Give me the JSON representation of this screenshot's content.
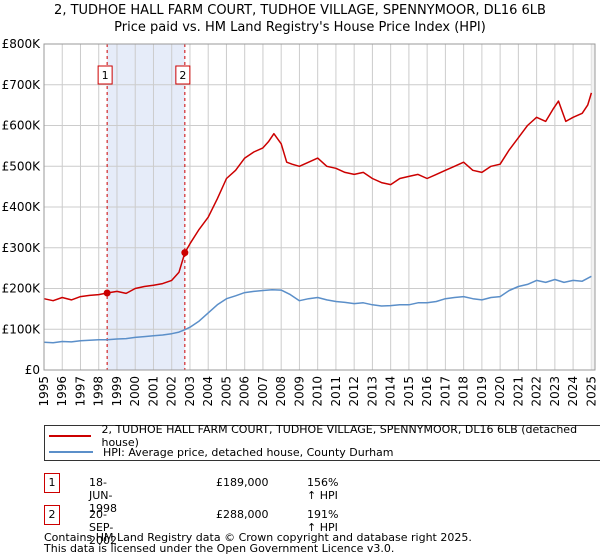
{
  "chart_data": {
    "type": "line",
    "title": "2, TUDHOE HALL FARM COURT, TUDHOE VILLAGE, SPENNYMOOR, DL16 6LB",
    "subtitle": "Price paid vs. HM Land Registry's House Price Index (HPI)",
    "xlabel": "",
    "ylabel": "",
    "xlim": [
      1995,
      2025.2
    ],
    "ylim": [
      0,
      800000
    ],
    "y_ticks": [
      {
        "value": 0,
        "label": "£0"
      },
      {
        "value": 100000,
        "label": "£100K"
      },
      {
        "value": 200000,
        "label": "£200K"
      },
      {
        "value": 300000,
        "label": "£300K"
      },
      {
        "value": 400000,
        "label": "£400K"
      },
      {
        "value": 500000,
        "label": "£500K"
      },
      {
        "value": 600000,
        "label": "£600K"
      },
      {
        "value": 700000,
        "label": "£700K"
      },
      {
        "value": 800000,
        "label": "£800K"
      }
    ],
    "x_ticks": [
      "1995",
      "1996",
      "1997",
      "1998",
      "1999",
      "2000",
      "2001",
      "2002",
      "2003",
      "2004",
      "2005",
      "2006",
      "2007",
      "2008",
      "2009",
      "2010",
      "2011",
      "2012",
      "2013",
      "2014",
      "2015",
      "2016",
      "2017",
      "2018",
      "2019",
      "2020",
      "2021",
      "2022",
      "2023",
      "2024",
      "2025"
    ],
    "grid": true,
    "shaded_region": {
      "from": 1998.46,
      "to": 2002.72
    },
    "series": [
      {
        "name": "2, TUDHOE HALL FARM COURT, TUDHOE VILLAGE, SPENNYMOOR, DL16 6LB (detached house)",
        "color": "#cc0000",
        "x": [
          1995.0,
          1995.5,
          1996.0,
          1996.5,
          1997.0,
          1997.5,
          1998.0,
          1998.46,
          1999.0,
          1999.5,
          2000.0,
          2000.5,
          2001.0,
          2001.5,
          2002.0,
          2002.4,
          2002.72,
          2003.0,
          2003.5,
          2004.0,
          2004.5,
          2005.0,
          2005.5,
          2006.0,
          2006.5,
          2007.0,
          2007.3,
          2007.6,
          2008.0,
          2008.3,
          2008.6,
          2009.0,
          2009.5,
          2010.0,
          2010.5,
          2011.0,
          2011.5,
          2012.0,
          2012.5,
          2013.0,
          2013.5,
          2014.0,
          2014.5,
          2015.0,
          2015.5,
          2016.0,
          2016.5,
          2017.0,
          2017.5,
          2018.0,
          2018.5,
          2019.0,
          2019.5,
          2020.0,
          2020.5,
          2021.0,
          2021.5,
          2022.0,
          2022.5,
          2022.9,
          2023.2,
          2023.6,
          2024.0,
          2024.5,
          2024.8,
          2025.0
        ],
        "y": [
          175000,
          170000,
          178000,
          172000,
          180000,
          183000,
          185000,
          189000,
          193000,
          188000,
          200000,
          205000,
          208000,
          212000,
          220000,
          240000,
          288000,
          310000,
          345000,
          375000,
          420000,
          470000,
          490000,
          520000,
          535000,
          545000,
          560000,
          580000,
          555000,
          510000,
          505000,
          500000,
          510000,
          520000,
          500000,
          495000,
          485000,
          480000,
          485000,
          470000,
          460000,
          455000,
          470000,
          475000,
          480000,
          470000,
          480000,
          490000,
          500000,
          510000,
          490000,
          485000,
          500000,
          505000,
          540000,
          570000,
          600000,
          620000,
          610000,
          640000,
          660000,
          610000,
          620000,
          630000,
          650000,
          680000
        ]
      },
      {
        "name": "HPI: Average price, detached house, County Durham",
        "color": "#5b8fc9",
        "x": [
          1995.0,
          1995.5,
          1996.0,
          1996.5,
          1997.0,
          1997.5,
          1998.0,
          1998.46,
          1999.0,
          1999.5,
          2000.0,
          2000.5,
          2001.0,
          2001.5,
          2002.0,
          2002.4,
          2002.72,
          2003.0,
          2003.5,
          2004.0,
          2004.5,
          2005.0,
          2005.5,
          2006.0,
          2006.5,
          2007.0,
          2007.5,
          2008.0,
          2008.5,
          2009.0,
          2009.5,
          2010.0,
          2010.5,
          2011.0,
          2011.5,
          2012.0,
          2012.5,
          2013.0,
          2013.5,
          2014.0,
          2014.5,
          2015.0,
          2015.5,
          2016.0,
          2016.5,
          2017.0,
          2017.5,
          2018.0,
          2018.5,
          2019.0,
          2019.5,
          2020.0,
          2020.5,
          2021.0,
          2021.5,
          2022.0,
          2022.5,
          2023.0,
          2023.5,
          2024.0,
          2024.5,
          2025.0
        ],
        "y": [
          68000,
          67000,
          70000,
          69000,
          72000,
          73000,
          74000,
          74000,
          76000,
          77000,
          80000,
          82000,
          84000,
          86000,
          89000,
          93000,
          99000,
          105000,
          120000,
          140000,
          160000,
          175000,
          182000,
          190000,
          193000,
          195000,
          197000,
          196000,
          185000,
          170000,
          175000,
          178000,
          172000,
          168000,
          166000,
          163000,
          165000,
          160000,
          157000,
          158000,
          160000,
          160000,
          165000,
          165000,
          168000,
          175000,
          178000,
          180000,
          175000,
          172000,
          178000,
          180000,
          195000,
          205000,
          210000,
          220000,
          215000,
          222000,
          215000,
          220000,
          218000,
          230000
        ]
      }
    ],
    "sales": [
      {
        "number": "1",
        "x": 1998.46,
        "y": 189000
      },
      {
        "number": "2",
        "x": 2002.72,
        "y": 288000
      }
    ]
  },
  "legend": {
    "property_label": "2, TUDHOE HALL FARM COURT, TUDHOE VILLAGE, SPENNYMOOR, DL16 6LB (detached house)",
    "hpi_label": "HPI: Average price, detached house, County Durham"
  },
  "sales_table": [
    {
      "number": "1",
      "date": "18-JUN-1998",
      "price": "£189,000",
      "hpi": "156% ↑ HPI"
    },
    {
      "number": "2",
      "date": "20-SEP-2002",
      "price": "£288,000",
      "hpi": "191% ↑ HPI"
    }
  ],
  "footer": {
    "line1": "Contains HM Land Registry data © Crown copyright and database right 2025.",
    "line2": "This data is licensed under the Open Government Licence v3.0."
  },
  "colors": {
    "property": "#cc0000",
    "hpi": "#5b8fc9",
    "shade": "#e6ecf9",
    "grid": "#cccccc"
  }
}
